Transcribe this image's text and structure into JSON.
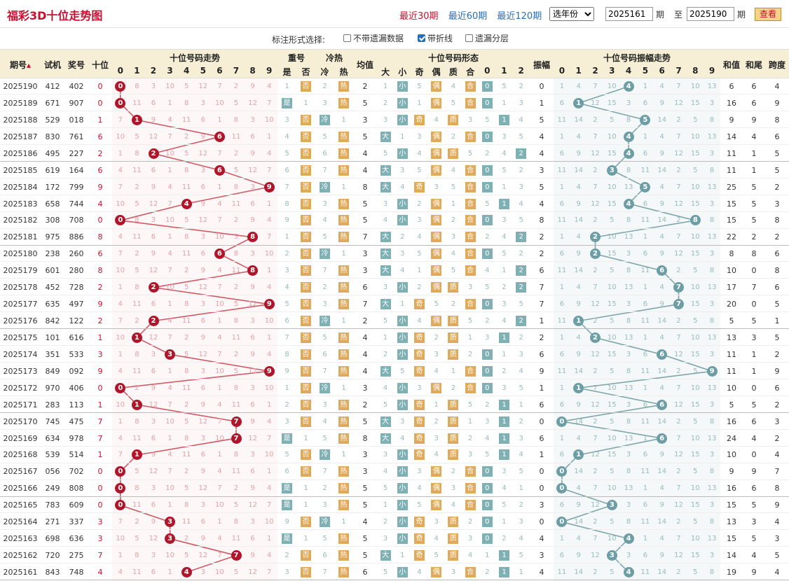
{
  "title": "福彩3D十位走势图",
  "period_links": [
    "最近30期",
    "最近60期",
    "最近120期"
  ],
  "year_select": "选年份",
  "range": {
    "from": "2025161",
    "to": "2025190",
    "lbl1": "期",
    "lbl2": "至",
    "lbl3": "期"
  },
  "query": "查看",
  "options": {
    "label": "标注形式选择:",
    "o1": "不带遗漏数据",
    "o2": "带折线",
    "o3": "遗漏分层"
  },
  "headers": {
    "issue": "期号",
    "trial": "试机",
    "prize": "奖号",
    "ten": "十位",
    "trend": "十位号码走势",
    "repeat": "重号",
    "yes": "是",
    "no": "否",
    "coldhot": "冷热",
    "cold": "冷",
    "hot": "热",
    "avg": "均值",
    "form": "十位号码形态",
    "big": "大",
    "small": "小",
    "odd": "奇",
    "even": "偶",
    "prime": "质",
    "comp": "合",
    "swing": "振幅",
    "swingtrend": "十位号码振幅走势",
    "sum": "和值",
    "tail": "和尾",
    "span": "跨度",
    "digits": [
      "0",
      "1",
      "2",
      "3",
      "4",
      "5",
      "6",
      "7",
      "8",
      "9"
    ],
    "r012": [
      "0",
      "1",
      "2"
    ]
  },
  "rows": [
    [
      "2025190",
      "412",
      "402",
      "0",
      "2",
      "0",
      "4",
      "6",
      "6",
      "4"
    ],
    [
      "2025189",
      "671",
      "907",
      "0",
      "5",
      "1",
      "1",
      "16",
      "6",
      "9"
    ],
    [
      "2025188",
      "529",
      "018",
      "1",
      "3",
      "5",
      "5",
      "9",
      "9",
      "8"
    ],
    [
      "2025187",
      "830",
      "761",
      "6",
      "5",
      "4",
      "4",
      "14",
      "4",
      "6"
    ],
    [
      "2025186",
      "495",
      "227",
      "2",
      "4",
      "4",
      "4",
      "11",
      "1",
      "5"
    ],
    [
      "2025185",
      "619",
      "164",
      "6",
      "4",
      "3",
      "3",
      "11",
      "1",
      "5"
    ],
    [
      "2025184",
      "172",
      "799",
      "9",
      "8",
      "5",
      "5",
      "25",
      "5",
      "2"
    ],
    [
      "2025183",
      "658",
      "744",
      "4",
      "5",
      "4",
      "4",
      "15",
      "5",
      "3"
    ],
    [
      "2025182",
      "308",
      "708",
      "0",
      "5",
      "8",
      "8",
      "15",
      "5",
      "8"
    ],
    [
      "2025181",
      "975",
      "886",
      "8",
      "7",
      "2",
      "2",
      "22",
      "2",
      "2"
    ],
    [
      "2025180",
      "238",
      "260",
      "6",
      "3",
      "2",
      "2",
      "8",
      "8",
      "6"
    ],
    [
      "2025179",
      "601",
      "280",
      "8",
      "3",
      "6",
      "6",
      "10",
      "0",
      "8"
    ],
    [
      "2025178",
      "452",
      "728",
      "2",
      "6",
      "7",
      "7",
      "17",
      "7",
      "6"
    ],
    [
      "2025177",
      "635",
      "497",
      "9",
      "7",
      "7",
      "7",
      "20",
      "0",
      "5"
    ],
    [
      "2025176",
      "842",
      "122",
      "2",
      "2",
      "1",
      "1",
      "5",
      "5",
      "1"
    ],
    [
      "2025175",
      "101",
      "616",
      "1",
      "4",
      "2",
      "2",
      "13",
      "3",
      "5"
    ],
    [
      "2025174",
      "351",
      "533",
      "3",
      "4",
      "6",
      "6",
      "11",
      "1",
      "2"
    ],
    [
      "2025173",
      "849",
      "092",
      "9",
      "4",
      "9",
      "9",
      "11",
      "1",
      "9"
    ],
    [
      "2025172",
      "970",
      "406",
      "0",
      "3",
      "1",
      "1",
      "10",
      "0",
      "6"
    ],
    [
      "2025171",
      "283",
      "113",
      "1",
      "2",
      "6",
      "6",
      "5",
      "5",
      "2"
    ],
    [
      "2025170",
      "745",
      "475",
      "7",
      "5",
      "0",
      "0",
      "16",
      "6",
      "3"
    ],
    [
      "2025169",
      "634",
      "978",
      "7",
      "8",
      "6",
      "6",
      "24",
      "4",
      "2"
    ],
    [
      "2025168",
      "539",
      "514",
      "1",
      "3",
      "1",
      "1",
      "10",
      "0",
      "4"
    ],
    [
      "2025167",
      "056",
      "702",
      "0",
      "3",
      "0",
      "0",
      "9",
      "9",
      "7"
    ],
    [
      "2025166",
      "249",
      "808",
      "0",
      "5",
      "0",
      "0",
      "16",
      "6",
      "8"
    ],
    [
      "2025165",
      "783",
      "609",
      "0",
      "5",
      "3",
      "3",
      "15",
      "5",
      "9"
    ],
    [
      "2025164",
      "271",
      "337",
      "3",
      "4",
      "0",
      "0",
      "13",
      "3",
      "4"
    ],
    [
      "2025163",
      "698",
      "636",
      "3",
      "5",
      "4",
      "4",
      "15",
      "5",
      "3"
    ],
    [
      "2025162",
      "720",
      "275",
      "7",
      "5",
      "3",
      "3",
      "14",
      "4",
      "5"
    ],
    [
      "2025161",
      "843",
      "748",
      "4",
      "6",
      "4",
      "4",
      "19",
      "9",
      "4"
    ]
  ]
}
